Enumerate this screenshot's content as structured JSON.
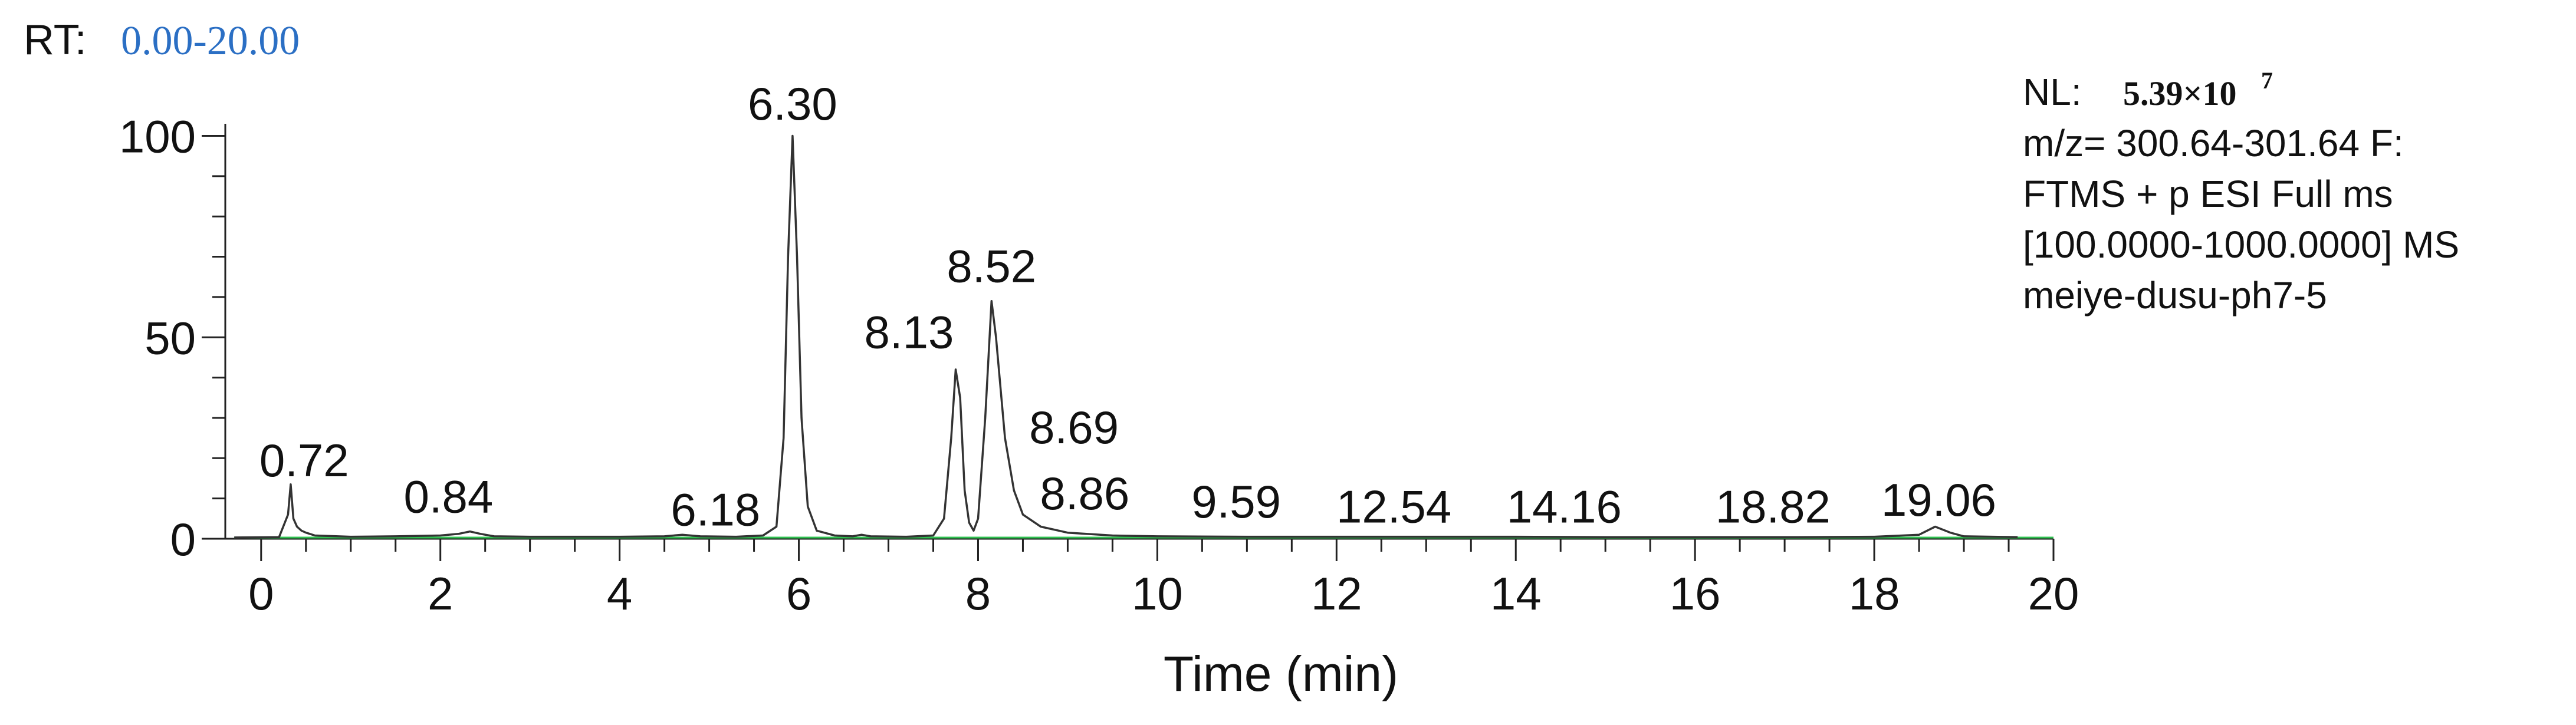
{
  "chart_data": {
    "type": "line",
    "header": {
      "rt_label": "RT:",
      "rt_range": "0.00-20.00"
    },
    "info": {
      "nl_label": "NL:",
      "nl_mantissa": "5.39×10",
      "nl_exponent": "7",
      "lines": [
        "m/z= 300.64-301.64 F:",
        "FTMS + p ESI Full ms",
        "[100.0000-1000.0000]  MS",
        "meiye-dusu-ph7-5"
      ]
    },
    "x_label": "Time (min)",
    "xlim": [
      -0.4,
      20
    ],
    "ylim": [
      0,
      103
    ],
    "xticks": [
      0,
      2,
      4,
      6,
      8,
      10,
      12,
      14,
      16,
      18,
      20
    ],
    "xminorticks": [
      0.5,
      1,
      1.5,
      2.5,
      3,
      3.5,
      4.5,
      5,
      5.5,
      6.5,
      7,
      7.5,
      8.5,
      9,
      9.5,
      10.5,
      11,
      11.5,
      12.5,
      13,
      13.5,
      14.5,
      15,
      15.5,
      16.5,
      17,
      17.5,
      18.5,
      19,
      19.5
    ],
    "yticks": [
      0,
      50,
      100
    ],
    "yminorticks": [
      10,
      20,
      30,
      40,
      60,
      70,
      80,
      90
    ],
    "series": [
      {
        "color": "#333333",
        "x": [
          -0.3,
          0.2,
          0.3,
          0.33,
          0.36,
          0.4,
          0.45,
          0.5,
          0.6,
          1.0,
          1.5,
          2.0,
          2.2,
          2.33,
          2.45,
          2.6,
          3.0,
          3.5,
          4.0,
          4.5,
          4.7,
          4.9,
          5.3,
          5.6,
          5.75,
          5.83,
          5.88,
          5.93,
          5.98,
          6.03,
          6.1,
          6.2,
          6.4,
          6.6,
          6.7,
          6.8,
          7.2,
          7.5,
          7.62,
          7.7,
          7.75,
          7.8,
          7.85,
          7.9,
          7.95,
          8.0,
          8.08,
          8.15,
          8.2,
          8.3,
          8.4,
          8.5,
          8.7,
          9.0,
          9.5,
          10,
          11,
          12,
          13,
          14,
          15,
          16,
          17,
          18,
          18.5,
          18.68,
          18.85,
          19.0,
          19.6
        ],
        "values": [
          0.3,
          0.4,
          6,
          13.5,
          5,
          3,
          2,
          1.5,
          0.8,
          0.5,
          0.6,
          0.8,
          1.2,
          1.8,
          1.2,
          0.6,
          0.5,
          0.5,
          0.5,
          0.6,
          1,
          0.6,
          0.5,
          0.8,
          3,
          25,
          70,
          100,
          70,
          30,
          8,
          2,
          0.8,
          0.6,
          1,
          0.6,
          0.5,
          0.8,
          5,
          25,
          42,
          35,
          12,
          4,
          2,
          5,
          30,
          59,
          50,
          25,
          12,
          6,
          3,
          1.5,
          0.8,
          0.6,
          0.5,
          0.5,
          0.5,
          0.5,
          0.4,
          0.4,
          0.4,
          0.5,
          1,
          3,
          1.5,
          0.6,
          0.4
        ]
      }
    ],
    "baseline_color": "#2fbf4f",
    "annotations": [
      {
        "label": "0.72",
        "x": 0.48,
        "y": 15.5
      },
      {
        "label": "0.84",
        "x": 2.09,
        "y": 6.5
      },
      {
        "label": "6.18",
        "x": 5.07,
        "y": 3.3
      },
      {
        "label": "6.30",
        "x": 5.93,
        "y": 104
      },
      {
        "label": "8.13",
        "x": 7.23,
        "y": 47.3
      },
      {
        "label": "8.52",
        "x": 8.15,
        "y": 63.7
      },
      {
        "label": "8.69",
        "x": 9.07,
        "y": 23.7
      },
      {
        "label": "8.86",
        "x": 9.19,
        "y": 7.3
      },
      {
        "label": "9.59",
        "x": 10.88,
        "y": 5.3
      },
      {
        "label": "12.54",
        "x": 12.64,
        "y": 4
      },
      {
        "label": "14.16",
        "x": 14.54,
        "y": 4
      },
      {
        "label": "18.82",
        "x": 16.87,
        "y": 4
      },
      {
        "label": "19.06",
        "x": 18.72,
        "y": 5.7
      }
    ]
  }
}
